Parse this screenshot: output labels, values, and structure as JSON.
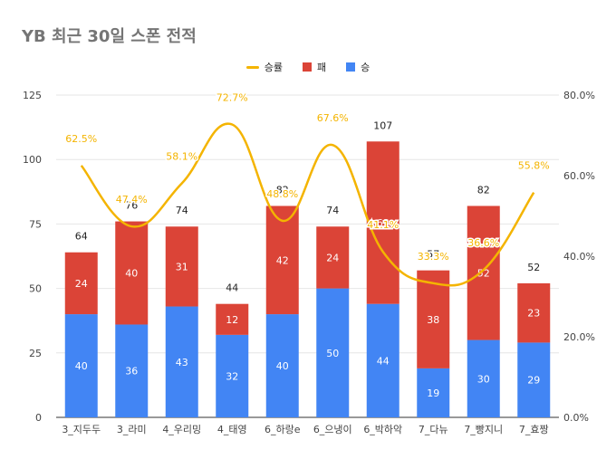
{
  "title": "YB 최근 30일 스폰 전적",
  "legend": {
    "rate_label": "승률",
    "loss_label": "패",
    "win_label": "승"
  },
  "colors": {
    "win": "#4285f4",
    "loss": "#db4437",
    "rate": "#f4b400",
    "axis_text": "#444444",
    "grid": "#e6e6e6",
    "title": "#757575"
  },
  "chart_data": {
    "type": "bar",
    "stacked": true,
    "title": "YB 최근 30일 스폰 전적",
    "categories": [
      "3_지두두",
      "3_라미",
      "4_우리밍",
      "4_태영",
      "6_하랑e",
      "6_으냉이",
      "6_박하악",
      "7_다뉴",
      "7_빵지니",
      "7_효짱"
    ],
    "series": [
      {
        "name": "승",
        "axis": "left",
        "values": [
          40,
          36,
          43,
          32,
          40,
          50,
          44,
          19,
          30,
          29
        ]
      },
      {
        "name": "패",
        "axis": "left",
        "values": [
          24,
          40,
          31,
          12,
          42,
          24,
          63,
          38,
          52,
          23
        ]
      },
      {
        "name": "승률",
        "axis": "right",
        "type": "line",
        "values": [
          62.5,
          47.4,
          58.1,
          72.7,
          48.8,
          67.6,
          41.1,
          33.3,
          36.6,
          55.8
        ]
      }
    ],
    "totals": [
      64,
      76,
      74,
      44,
      82,
      74,
      107,
      57,
      82,
      52
    ],
    "rate_labels": [
      "62.5%",
      "47.4%",
      "58.1%",
      "72.7%",
      "48.8%",
      "67.6%",
      "41.1%",
      "33.3%",
      "36.6%",
      "55.8%"
    ],
    "y_left": {
      "min": 0,
      "max": 125,
      "ticks": [
        0,
        25,
        50,
        75,
        100,
        125
      ]
    },
    "y_right": {
      "min": 0,
      "max": 80,
      "ticks": [
        "0.0%",
        "20.0%",
        "40.0%",
        "60.0%",
        "80.0%"
      ]
    },
    "grid": true,
    "legend_position": "top"
  }
}
